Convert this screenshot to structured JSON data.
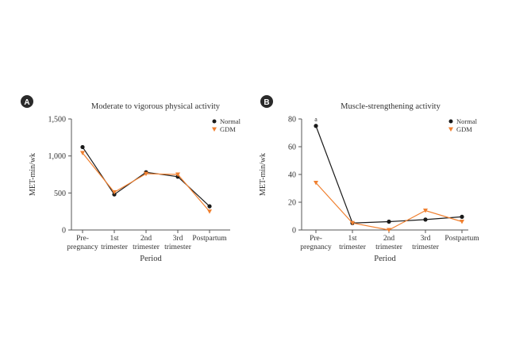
{
  "chart_data": [
    {
      "type": "line",
      "panel_label": "A",
      "title": "Moderate to vigorous physical activity",
      "xlabel": "Period",
      "ylabel": "MET-min/wk",
      "categories": [
        [
          "Pre-",
          "pregnancy"
        ],
        [
          "1st",
          "trimester"
        ],
        [
          "2nd",
          "trimester"
        ],
        [
          "3rd",
          "trimester"
        ],
        [
          "Postpartum"
        ]
      ],
      "ylim": [
        0,
        1500
      ],
      "yticks": [
        0,
        500,
        1000,
        1500
      ],
      "yticklabels": [
        "0",
        "500",
        "1,000",
        "1,500"
      ],
      "grid": false,
      "legend_position": "top-right",
      "series": [
        {
          "name": "Normal",
          "marker": "circle",
          "color": "#1a1a1a",
          "values": [
            1120,
            480,
            780,
            720,
            320
          ]
        },
        {
          "name": "GDM",
          "marker": "triangle-down",
          "color": "#f08030",
          "values": [
            1040,
            510,
            760,
            750,
            250
          ]
        }
      ],
      "annotations": []
    },
    {
      "type": "line",
      "panel_label": "B",
      "title": "Muscle-strengthening activity",
      "xlabel": "Period",
      "ylabel": "MET-min/wk",
      "categories": [
        [
          "Pre-",
          "pregnancy"
        ],
        [
          "1st",
          "trimester"
        ],
        [
          "2nd",
          "trimester"
        ],
        [
          "3rd",
          "trimester"
        ],
        [
          "Postpartum"
        ]
      ],
      "ylim": [
        0,
        80
      ],
      "yticks": [
        0,
        20,
        40,
        60,
        80
      ],
      "yticklabels": [
        "0",
        "20",
        "40",
        "60",
        "80"
      ],
      "grid": false,
      "legend_position": "top-right",
      "series": [
        {
          "name": "Normal",
          "marker": "circle",
          "color": "#1a1a1a",
          "values": [
            75,
            5,
            6,
            7.5,
            9.5
          ]
        },
        {
          "name": "GDM",
          "marker": "triangle-down",
          "color": "#f08030",
          "values": [
            34,
            5,
            0,
            14,
            6
          ]
        }
      ],
      "annotations": [
        {
          "text": "a",
          "category_index": 0
        }
      ]
    }
  ],
  "colors": {
    "axis": "#555555",
    "badge": "#2a2a2a",
    "normal": "#1a1a1a",
    "gdm": "#f08030"
  }
}
